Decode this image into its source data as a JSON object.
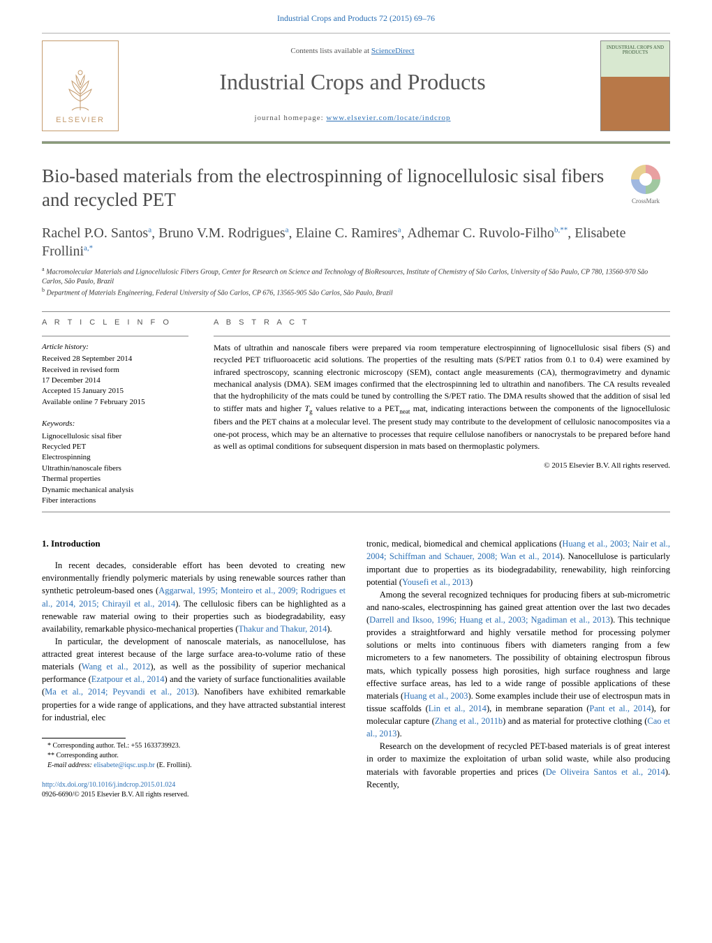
{
  "header": {
    "running_head": "Industrial Crops and Products 72 (2015) 69–76",
    "contents_prefix": "Contents lists available at ",
    "contents_link": "ScienceDirect",
    "journal": "Industrial Crops and Products",
    "homepage_prefix": "journal homepage: ",
    "homepage_url": "www.elsevier.com/locate/indcrop",
    "publisher_name": "ELSEVIER",
    "cover_caption": "INDUSTRIAL CROPS AND PRODUCTS",
    "crossmark": "CrossMark"
  },
  "title": "Bio-based materials from the electrospinning of lignocellulosic sisal fibers and recycled PET",
  "authors_html": "Rachel P.O. Santos<sup>a</sup>, Bruno V.M. Rodrigues<sup>a</sup>, Elaine C. Ramires<sup>a</sup>, Adhemar C. Ruvolo-Filho<sup>b,**</sup>, Elisabete Frollini<sup>a,*</sup>",
  "affiliations": {
    "a": "Macromolecular Materials and Lignocellulosic Fibers Group, Center for Research on Science and Technology of BioResources, Institute of Chemistry of São Carlos, University of São Paulo, CP 780, 13560-970 São Carlos, São Paulo, Brazil",
    "b": "Department of Materials Engineering, Federal University of São Carlos, CP 676, 13565-905 São Carlos, São Paulo, Brazil"
  },
  "article_info": {
    "heading": "A R T I C L E   I N F O",
    "history_label": "Article history:",
    "history": [
      "Received 28 September 2014",
      "Received in revised form",
      "17 December 2014",
      "Accepted 15 January 2015",
      "Available online 7 February 2015"
    ],
    "keywords_label": "Keywords:",
    "keywords": [
      "Lignocellulosic sisal fiber",
      "Recycled PET",
      "Electrospinning",
      "Ultrathin/nanoscale fibers",
      "Thermal properties",
      "Dynamic mechanical analysis",
      "Fiber interactions"
    ]
  },
  "abstract": {
    "heading": "A B S T R A C T",
    "text": "Mats of ultrathin and nanoscale fibers were prepared via room temperature electrospinning of lignocellulosic sisal fibers (S) and recycled PET trifluoroacetic acid solutions. The properties of the resulting mats (S/PET ratios from 0.1 to 0.4) were examined by infrared spectroscopy, scanning electronic microscopy (SEM), contact angle measurements (CA), thermogravimetry and dynamic mechanical analysis (DMA). SEM images confirmed that the electrospinning led to ultrathin and nanofibers. The CA results revealed that the hydrophilicity of the mats could be tuned by controlling the S/PET ratio. The DMA results showed that the addition of sisal led to stiffer mats and higher Tg values relative to a PETneat mat, indicating interactions between the components of the lignocellulosic fibers and the PET chains at a molecular level. The present study may contribute to the development of cellulosic nanocomposites via a one-pot process, which may be an alternative to processes that require cellulose nanofibers or nanocrystals to be prepared before hand as well as optimal conditions for subsequent dispersion in mats based on thermoplastic polymers.",
    "copyright": "© 2015 Elsevier B.V. All rights reserved."
  },
  "intro": {
    "heading": "1.  Introduction",
    "p1_a": "In recent decades, considerable effort has been devoted to creating new environmentally friendly polymeric materials by using renewable sources rather than synthetic petroleum-based ones (",
    "p1_cite": "Aggarwal, 1995; Monteiro et al., 2009; Rodrigues et al., 2014, 2015; Chirayil et al., 2014",
    "p1_b": "). The cellulosic fibers can be highlighted as a renewable raw material owing to their properties such as biodegradability, easy availability, remarkable physico-mechanical properties (",
    "p1_cite2": "Thakur and Thakur, 2014",
    "p1_c": ").",
    "p2_a": "In particular, the development of nanoscale materials, as nanocellulose, has attracted great interest because of the large surface area-to-volume ratio of these materials (",
    "p2_c1": "Wang et al., 2012",
    "p2_b": "), as well as the possibility of superior mechanical performance (",
    "p2_c2": "Ezatpour et al., 2014",
    "p2_c": ") and the variety of surface functionalities available (",
    "p2_c3": "Ma et al., 2014; Peyvandi et al., 2013",
    "p2_d": "). Nanofibers have exhibited remarkable properties for a wide range of applications, and they have attracted substantial interest for industrial, elec",
    "p3_a": "tronic, medical, biomedical and chemical applications (",
    "p3_c1": "Huang et al., 2003; Nair et al., 2004; Schiffman and Schauer, 2008; Wan et al., 2014",
    "p3_b": "). Nanocellulose is particularly important due to properties as its biodegradability, renewability, high reinforcing potential (",
    "p3_c2": "Yousefi et al., 2013",
    "p3_c": ")",
    "p4_a": "Among the several recognized techniques for producing fibers at sub-micrometric and nano-scales, electrospinning has gained great attention over the last two decades (",
    "p4_c1": "Darrell and Iksoo, 1996; Huang et al., 2003; Ngadiman et al., 2013",
    "p4_b": "). This technique provides a straightforward and highly versatile method for processing polymer solutions or melts into continuous fibers with diameters ranging from a few micrometers to a few nanometers. The possibility of obtaining electrospun fibrous mats, which typically possess high porosities, high surface roughness and large effective surface areas, has led to a wide range of possible applications of these materials (",
    "p4_c2": "Huang et al., 2003",
    "p4_c": "). Some examples include their use of electrospun mats in tissue scaffolds (",
    "p4_c3": "Lin et al., 2014",
    "p4_d": "), in membrane separation (",
    "p4_c4": "Pant et al., 2014",
    "p4_e": "), for molecular capture (",
    "p4_c5": "Zhang et al., 2011b",
    "p4_f": ") and as material for protective clothing (",
    "p4_c6": "Cao et al., 2013",
    "p4_g": ").",
    "p5_a": "Research on the development of recycled PET-based materials is of great interest in order to maximize the exploitation of urban solid waste, while also producing materials with favorable properties and prices (",
    "p5_c1": "De Oliveira Santos et al., 2014",
    "p5_b": "). Recently,"
  },
  "footnotes": {
    "corr1": "* Corresponding author. Tel.: +55 1633739923.",
    "corr2": "** Corresponding author.",
    "email_label": "E-mail address: ",
    "email": "elisabete@iqsc.usp.br",
    "email_name": " (E. Frollini)."
  },
  "doi": {
    "url": "http://dx.doi.org/10.1016/j.indcrop.2015.01.024",
    "issn_line": "0926-6690/© 2015 Elsevier B.V. All rights reserved."
  },
  "colors": {
    "link": "#2a6fb5",
    "elsevier": "#c49a6c",
    "rule": "#888888",
    "accent_bar": "#8a9a7a"
  },
  "typography": {
    "body_font": "Georgia / Times New Roman serif",
    "title_pt": 27,
    "journal_pt": 32,
    "authors_pt": 20,
    "body_pt": 12.5,
    "small_pt": 11
  }
}
